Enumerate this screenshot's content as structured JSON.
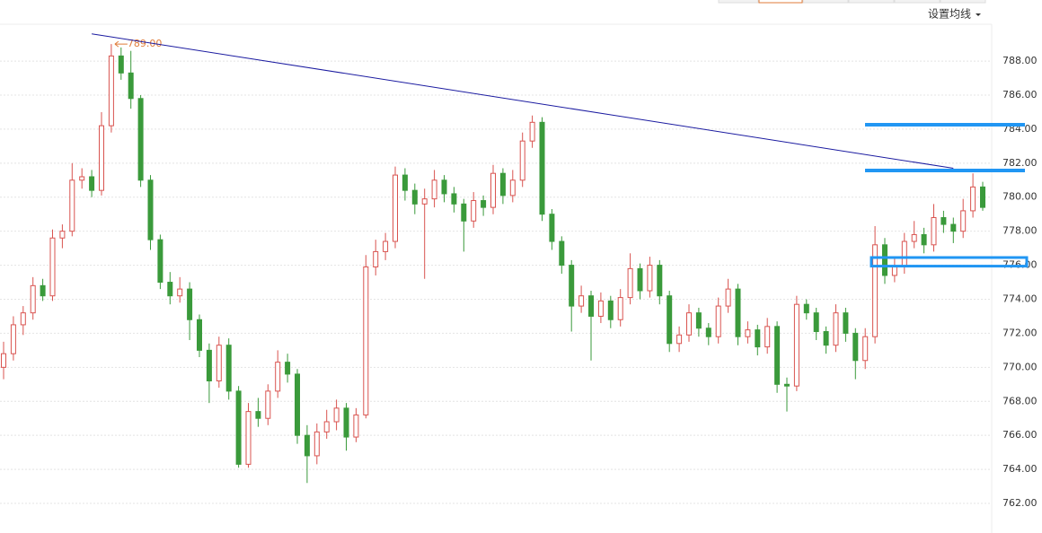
{
  "toolbar": {
    "button": "设置均线"
  },
  "chart_data": {
    "type": "candlestick",
    "up_color": "#d9534f",
    "down_color": "#3a9a3b",
    "ylim": [
      760.26,
      791.59
    ],
    "yticks": [
      {
        "value": 762,
        "label": "762.00"
      },
      {
        "value": 764,
        "label": "764.00"
      },
      {
        "value": 766,
        "label": "766.00"
      },
      {
        "value": 768,
        "label": "768.00"
      },
      {
        "value": 770,
        "label": "770.00"
      },
      {
        "value": 772,
        "label": "772.00"
      },
      {
        "value": 774,
        "label": "774.00"
      },
      {
        "value": 776,
        "label": "776.00"
      },
      {
        "value": 778,
        "label": "778.00"
      },
      {
        "value": 780,
        "label": "780.00"
      },
      {
        "value": 782,
        "label": "782.00"
      },
      {
        "value": 784,
        "label": "784.00"
      },
      {
        "value": 786,
        "label": "786.00"
      },
      {
        "value": 788,
        "label": "788.00"
      }
    ],
    "grid": true,
    "max_label": "789.00",
    "max_label_color": "#e07b39",
    "trendline": {
      "color": "#1a1aa0",
      "start": [
        9,
        789.6
      ],
      "end": [
        97,
        781.7
      ]
    },
    "levels": {
      "color": "#2196f3",
      "values": [
        784.26,
        781.57
      ]
    },
    "zone": {
      "color": "#2196f3",
      "values": [
        776.0,
        776.4
      ]
    },
    "ohlc": [
      [
        770.0,
        771.5,
        769.3,
        770.8
      ],
      [
        770.8,
        773.0,
        770.4,
        772.5
      ],
      [
        772.5,
        773.6,
        771.9,
        773.2
      ],
      [
        773.2,
        775.3,
        772.8,
        774.8
      ],
      [
        774.8,
        775.2,
        773.9,
        774.2
      ],
      [
        774.2,
        778.1,
        773.9,
        777.6
      ],
      [
        777.6,
        778.4,
        777.0,
        778.0
      ],
      [
        778.0,
        782.0,
        777.7,
        781.0
      ],
      [
        781.0,
        781.7,
        780.5,
        781.2
      ],
      [
        781.2,
        781.6,
        780.0,
        780.4
      ],
      [
        780.4,
        785.0,
        780.1,
        784.2
      ],
      [
        784.2,
        789.0,
        783.8,
        788.3
      ],
      [
        788.3,
        788.8,
        786.9,
        787.3
      ],
      [
        787.3,
        788.6,
        785.2,
        785.8
      ],
      [
        785.8,
        786.0,
        780.6,
        781.0
      ],
      [
        781.0,
        781.3,
        776.9,
        777.5
      ],
      [
        777.5,
        777.8,
        774.6,
        775.0
      ],
      [
        775.0,
        775.6,
        773.7,
        774.2
      ],
      [
        774.2,
        775.3,
        773.8,
        774.6
      ],
      [
        774.6,
        775.0,
        771.6,
        772.8
      ],
      [
        772.8,
        773.1,
        770.6,
        771.0
      ],
      [
        771.0,
        771.4,
        767.9,
        769.2
      ],
      [
        769.2,
        771.8,
        768.8,
        771.3
      ],
      [
        771.3,
        771.7,
        768.1,
        768.6
      ],
      [
        768.6,
        768.9,
        764.1,
        764.3
      ],
      [
        764.3,
        767.9,
        764.1,
        767.4
      ],
      [
        767.4,
        768.2,
        766.5,
        767.0
      ],
      [
        767.0,
        769.0,
        766.6,
        768.6
      ],
      [
        768.6,
        771.0,
        768.2,
        770.3
      ],
      [
        770.3,
        770.8,
        769.1,
        769.6
      ],
      [
        769.6,
        769.9,
        765.5,
        766.0
      ],
      [
        766.0,
        766.6,
        763.2,
        764.8
      ],
      [
        764.8,
        766.7,
        764.3,
        766.2
      ],
      [
        766.2,
        767.5,
        765.8,
        766.8
      ],
      [
        766.8,
        768.1,
        766.3,
        767.6
      ],
      [
        767.6,
        767.9,
        765.1,
        765.9
      ],
      [
        765.9,
        767.6,
        765.6,
        767.2
      ],
      [
        767.2,
        776.6,
        767.0,
        775.9
      ],
      [
        775.9,
        777.5,
        775.4,
        776.8
      ],
      [
        776.8,
        777.9,
        776.3,
        777.4
      ],
      [
        777.4,
        781.8,
        777.0,
        781.3
      ],
      [
        781.3,
        781.7,
        779.8,
        780.4
      ],
      [
        780.4,
        780.8,
        779.0,
        779.6
      ],
      [
        779.6,
        780.5,
        775.2,
        779.9
      ],
      [
        779.9,
        781.6,
        779.4,
        781.0
      ],
      [
        781.0,
        781.3,
        779.7,
        780.2
      ],
      [
        780.2,
        780.6,
        779.1,
        779.6
      ],
      [
        779.6,
        779.9,
        776.8,
        778.6
      ],
      [
        778.6,
        780.3,
        778.2,
        779.8
      ],
      [
        779.8,
        780.1,
        778.9,
        779.4
      ],
      [
        779.4,
        781.9,
        779.0,
        781.4
      ],
      [
        781.4,
        781.7,
        779.6,
        780.1
      ],
      [
        780.1,
        781.6,
        779.7,
        781.0
      ],
      [
        781.0,
        783.8,
        780.6,
        783.3
      ],
      [
        783.3,
        784.8,
        782.9,
        784.4
      ],
      [
        784.4,
        784.7,
        778.6,
        779.0
      ],
      [
        779.0,
        779.3,
        776.9,
        777.4
      ],
      [
        777.4,
        777.7,
        775.5,
        776.0
      ],
      [
        776.0,
        776.3,
        772.1,
        773.6
      ],
      [
        773.6,
        774.8,
        773.2,
        774.2
      ],
      [
        774.2,
        774.5,
        770.4,
        773.0
      ],
      [
        773.0,
        774.4,
        772.6,
        773.9
      ],
      [
        773.9,
        774.2,
        772.3,
        772.8
      ],
      [
        772.8,
        774.6,
        772.4,
        774.1
      ],
      [
        774.1,
        776.7,
        773.7,
        775.8
      ],
      [
        775.8,
        776.1,
        774.0,
        774.5
      ],
      [
        774.5,
        776.5,
        774.1,
        776.0
      ],
      [
        776.0,
        776.3,
        773.7,
        774.2
      ],
      [
        774.2,
        774.5,
        770.9,
        771.4
      ],
      [
        771.4,
        772.4,
        770.9,
        771.9
      ],
      [
        771.9,
        773.7,
        771.5,
        773.2
      ],
      [
        773.2,
        773.5,
        771.8,
        772.3
      ],
      [
        772.3,
        772.6,
        771.3,
        771.8
      ],
      [
        771.8,
        774.1,
        771.4,
        773.6
      ],
      [
        773.6,
        775.2,
        773.2,
        774.6
      ],
      [
        774.6,
        774.9,
        771.3,
        771.8
      ],
      [
        771.8,
        772.7,
        771.4,
        772.2
      ],
      [
        772.2,
        772.5,
        770.7,
        771.2
      ],
      [
        771.2,
        772.9,
        770.8,
        772.4
      ],
      [
        772.4,
        772.7,
        768.5,
        769.0
      ],
      [
        769.0,
        769.4,
        767.4,
        768.9
      ],
      [
        768.9,
        774.2,
        768.6,
        773.7
      ],
      [
        773.7,
        774.0,
        772.8,
        773.2
      ],
      [
        773.2,
        773.5,
        771.6,
        772.1
      ],
      [
        772.1,
        772.4,
        770.8,
        771.3
      ],
      [
        771.3,
        773.7,
        770.9,
        773.2
      ],
      [
        773.2,
        773.5,
        771.5,
        772.0
      ],
      [
        772.0,
        772.3,
        769.3,
        770.4
      ],
      [
        770.4,
        772.3,
        769.9,
        771.8
      ],
      [
        771.8,
        778.3,
        771.4,
        777.2
      ],
      [
        777.2,
        777.6,
        774.9,
        775.4
      ],
      [
        775.4,
        776.4,
        775.0,
        775.9
      ],
      [
        775.9,
        777.9,
        775.5,
        777.4
      ],
      [
        777.4,
        778.6,
        777.0,
        777.8
      ],
      [
        777.8,
        778.2,
        776.7,
        777.2
      ],
      [
        777.2,
        779.6,
        776.8,
        778.8
      ],
      [
        778.8,
        779.2,
        777.9,
        778.4
      ],
      [
        778.4,
        778.8,
        777.3,
        778.0
      ],
      [
        778.0,
        779.9,
        777.6,
        779.2
      ],
      [
        779.2,
        781.4,
        778.8,
        780.6
      ],
      [
        780.6,
        780.9,
        779.2,
        779.4
      ]
    ]
  }
}
